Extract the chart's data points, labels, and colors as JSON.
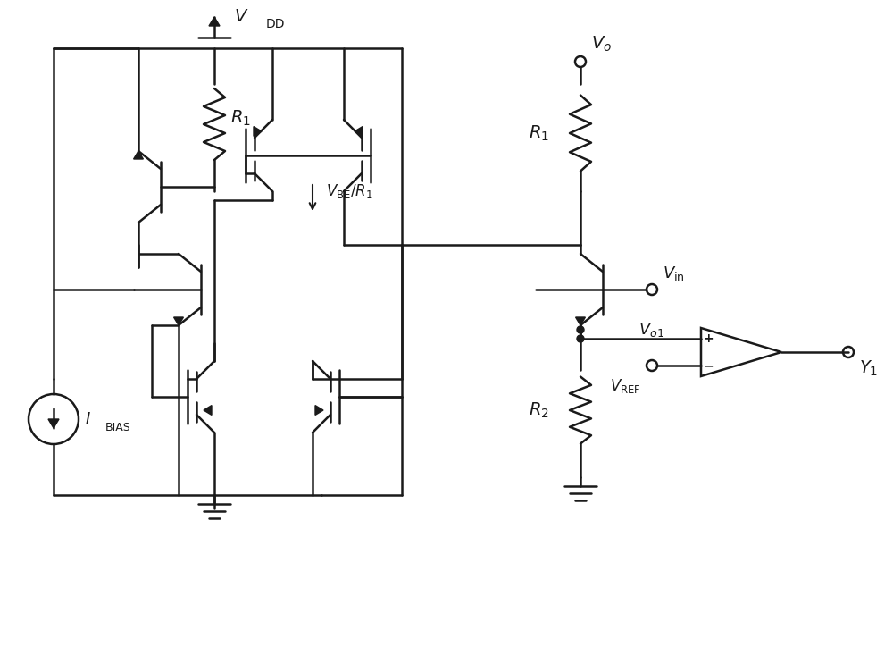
{
  "bg_color": "#ffffff",
  "line_color": "#1a1a1a",
  "lw": 1.8,
  "fig_width": 10.0,
  "fig_height": 7.24
}
